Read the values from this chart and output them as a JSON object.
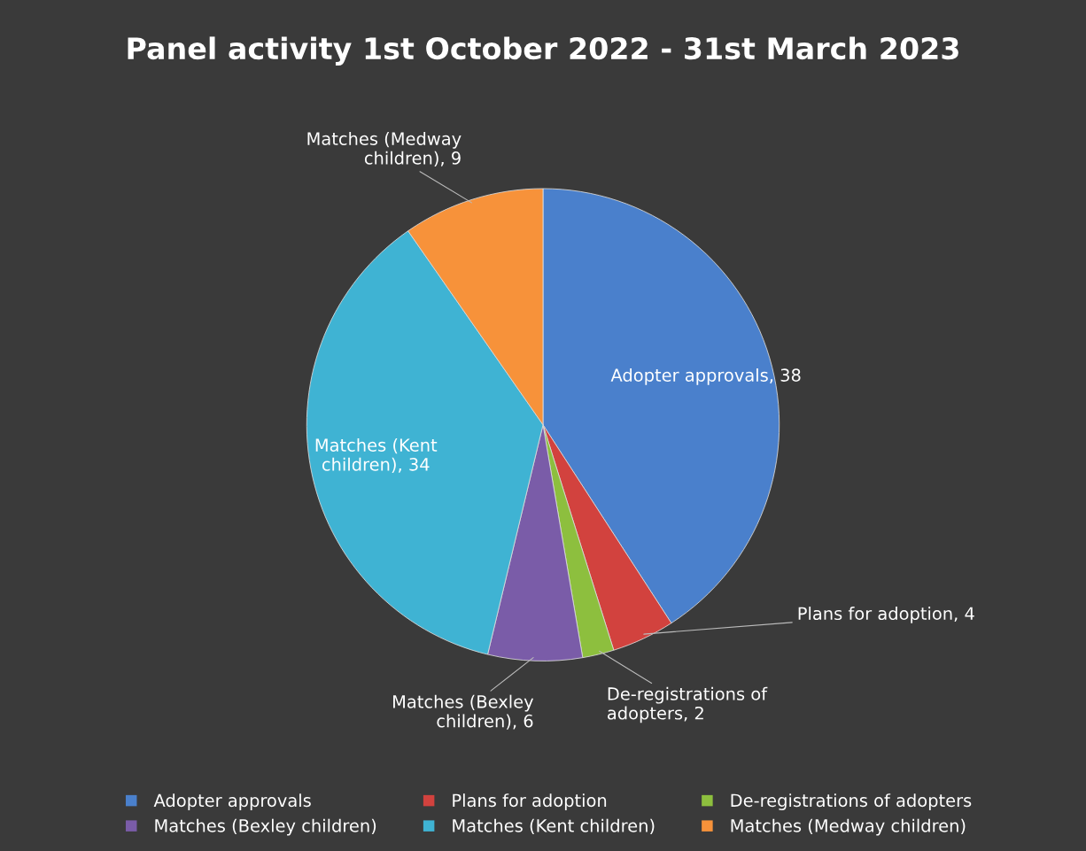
{
  "chart_data": {
    "type": "pie",
    "title": "Panel activity 1st October 2022 - 31st March 2023",
    "categories": [
      "Adopter approvals",
      "Plans for adoption",
      "De-registrations of adopters",
      "Matches (Bexley children)",
      "Matches (Kent children)",
      "Matches (Medway children)"
    ],
    "values": [
      38,
      4,
      2,
      6,
      34,
      9
    ],
    "colors": [
      "#4a80cc",
      "#d2423e",
      "#8dbf3e",
      "#7a5ca8",
      "#3fb3d3",
      "#f7923a"
    ],
    "value_labels": [
      "Adopter approvals, 38",
      "Plans for adoption, 4",
      "De-registrations of\nadopters, 2",
      "Matches (Bexley\nchildren), 6",
      "Matches (Kent\nchildren), 34",
      "Matches (Medway\nchildren), 9"
    ],
    "legend": "bottom"
  }
}
